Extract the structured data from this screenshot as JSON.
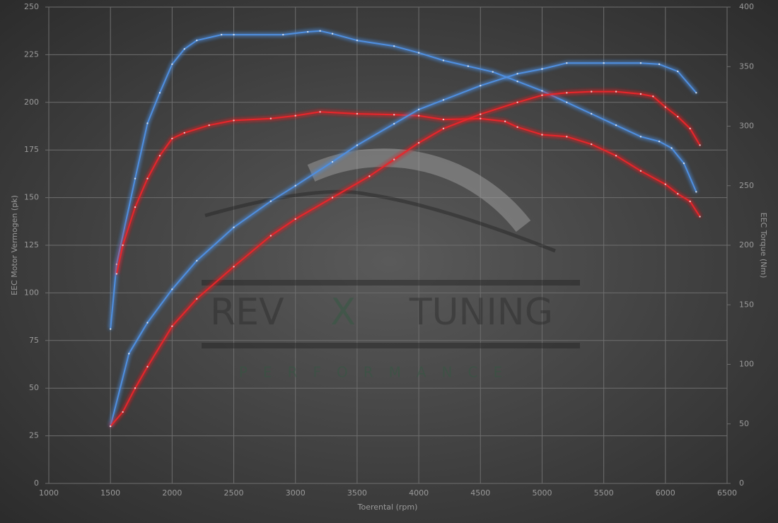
{
  "chart_data": {
    "type": "line",
    "x_label": "Toerental (rpm)",
    "y_label": "EEC Motor Vermogen (pk)",
    "y2_label": "EEC Torque (Nm)",
    "annotations": [
      "REV",
      "X",
      "TUNING",
      "PERFORMANCE"
    ],
    "xlim": [
      1000,
      6500
    ],
    "xticks": [
      1000,
      1500,
      2000,
      2500,
      3000,
      3500,
      4000,
      4500,
      5000,
      5500,
      6000,
      6500
    ],
    "ylim": [
      0,
      250
    ],
    "yticks": [
      0,
      25,
      50,
      75,
      100,
      125,
      150,
      175,
      200,
      225,
      250
    ],
    "y2lim": [
      0,
      400
    ],
    "y2ticks": [
      0,
      50,
      100,
      150,
      200,
      250,
      300,
      350,
      400
    ],
    "grid": true,
    "series": [
      {
        "color": "#4f8fe0",
        "axis": "y",
        "x": [
          1500,
          1550,
          1700,
          1800,
          1900,
          2000,
          2100,
          2200,
          2400,
          2500,
          2900,
          3100,
          3200,
          3300,
          3500,
          3800,
          4000,
          4200,
          4400,
          4600,
          4800,
          5000,
          5200,
          5400,
          5600,
          5800,
          5950,
          6050,
          6150,
          6250
        ],
        "values": [
          81,
          115,
          160,
          189,
          205,
          220,
          228,
          232.5,
          235.5,
          235.5,
          235.5,
          237,
          237.5,
          236,
          232.5,
          229.5,
          226,
          222,
          219,
          216,
          211,
          206,
          200,
          194,
          188,
          182,
          179.5,
          176,
          168,
          153
        ]
      },
      {
        "color": "#e8262b",
        "axis": "y",
        "x": [
          1550,
          1600,
          1700,
          1800,
          1900,
          2000,
          2100,
          2300,
          2500,
          2800,
          3000,
          3200,
          3500,
          3800,
          4000,
          4200,
          4500,
          4700,
          4800,
          5000,
          5200,
          5400,
          5600,
          5800,
          6000,
          6100,
          6200,
          6280
        ],
        "values": [
          110,
          125,
          145,
          160,
          172,
          181,
          184,
          188,
          190.5,
          191.5,
          193,
          195,
          194,
          193.5,
          193,
          191,
          191.5,
          190,
          187,
          183,
          182,
          178,
          172,
          164,
          157,
          152,
          148,
          140
        ]
      },
      {
        "color": "#4f8fe0",
        "axis": "y2",
        "x": [
          1500,
          1650,
          1800,
          2000,
          2200,
          2500,
          2800,
          3000,
          3300,
          3500,
          3800,
          4000,
          4200,
          4500,
          4800,
          5000,
          5200,
          5500,
          5800,
          5950,
          6100,
          6250
        ],
        "values": [
          48,
          109,
          135,
          163,
          187,
          215,
          237,
          250,
          270,
          284,
          302,
          314,
          322,
          334,
          344,
          348,
          353,
          353,
          353,
          352,
          346,
          328
        ]
      },
      {
        "color": "#e8262b",
        "axis": "y2",
        "x": [
          1500,
          1600,
          1700,
          1800,
          2000,
          2200,
          2500,
          2800,
          3000,
          3300,
          3600,
          3800,
          4000,
          4200,
          4500,
          4800,
          5000,
          5200,
          5400,
          5600,
          5800,
          5900,
          6000,
          6100,
          6200,
          6280
        ],
        "values": [
          48,
          60,
          80,
          98,
          132,
          155,
          182,
          208,
          222,
          240,
          258,
          272,
          286,
          298,
          310,
          320,
          326,
          328,
          329,
          329,
          327,
          325,
          316,
          308,
          298,
          284
        ]
      }
    ]
  }
}
